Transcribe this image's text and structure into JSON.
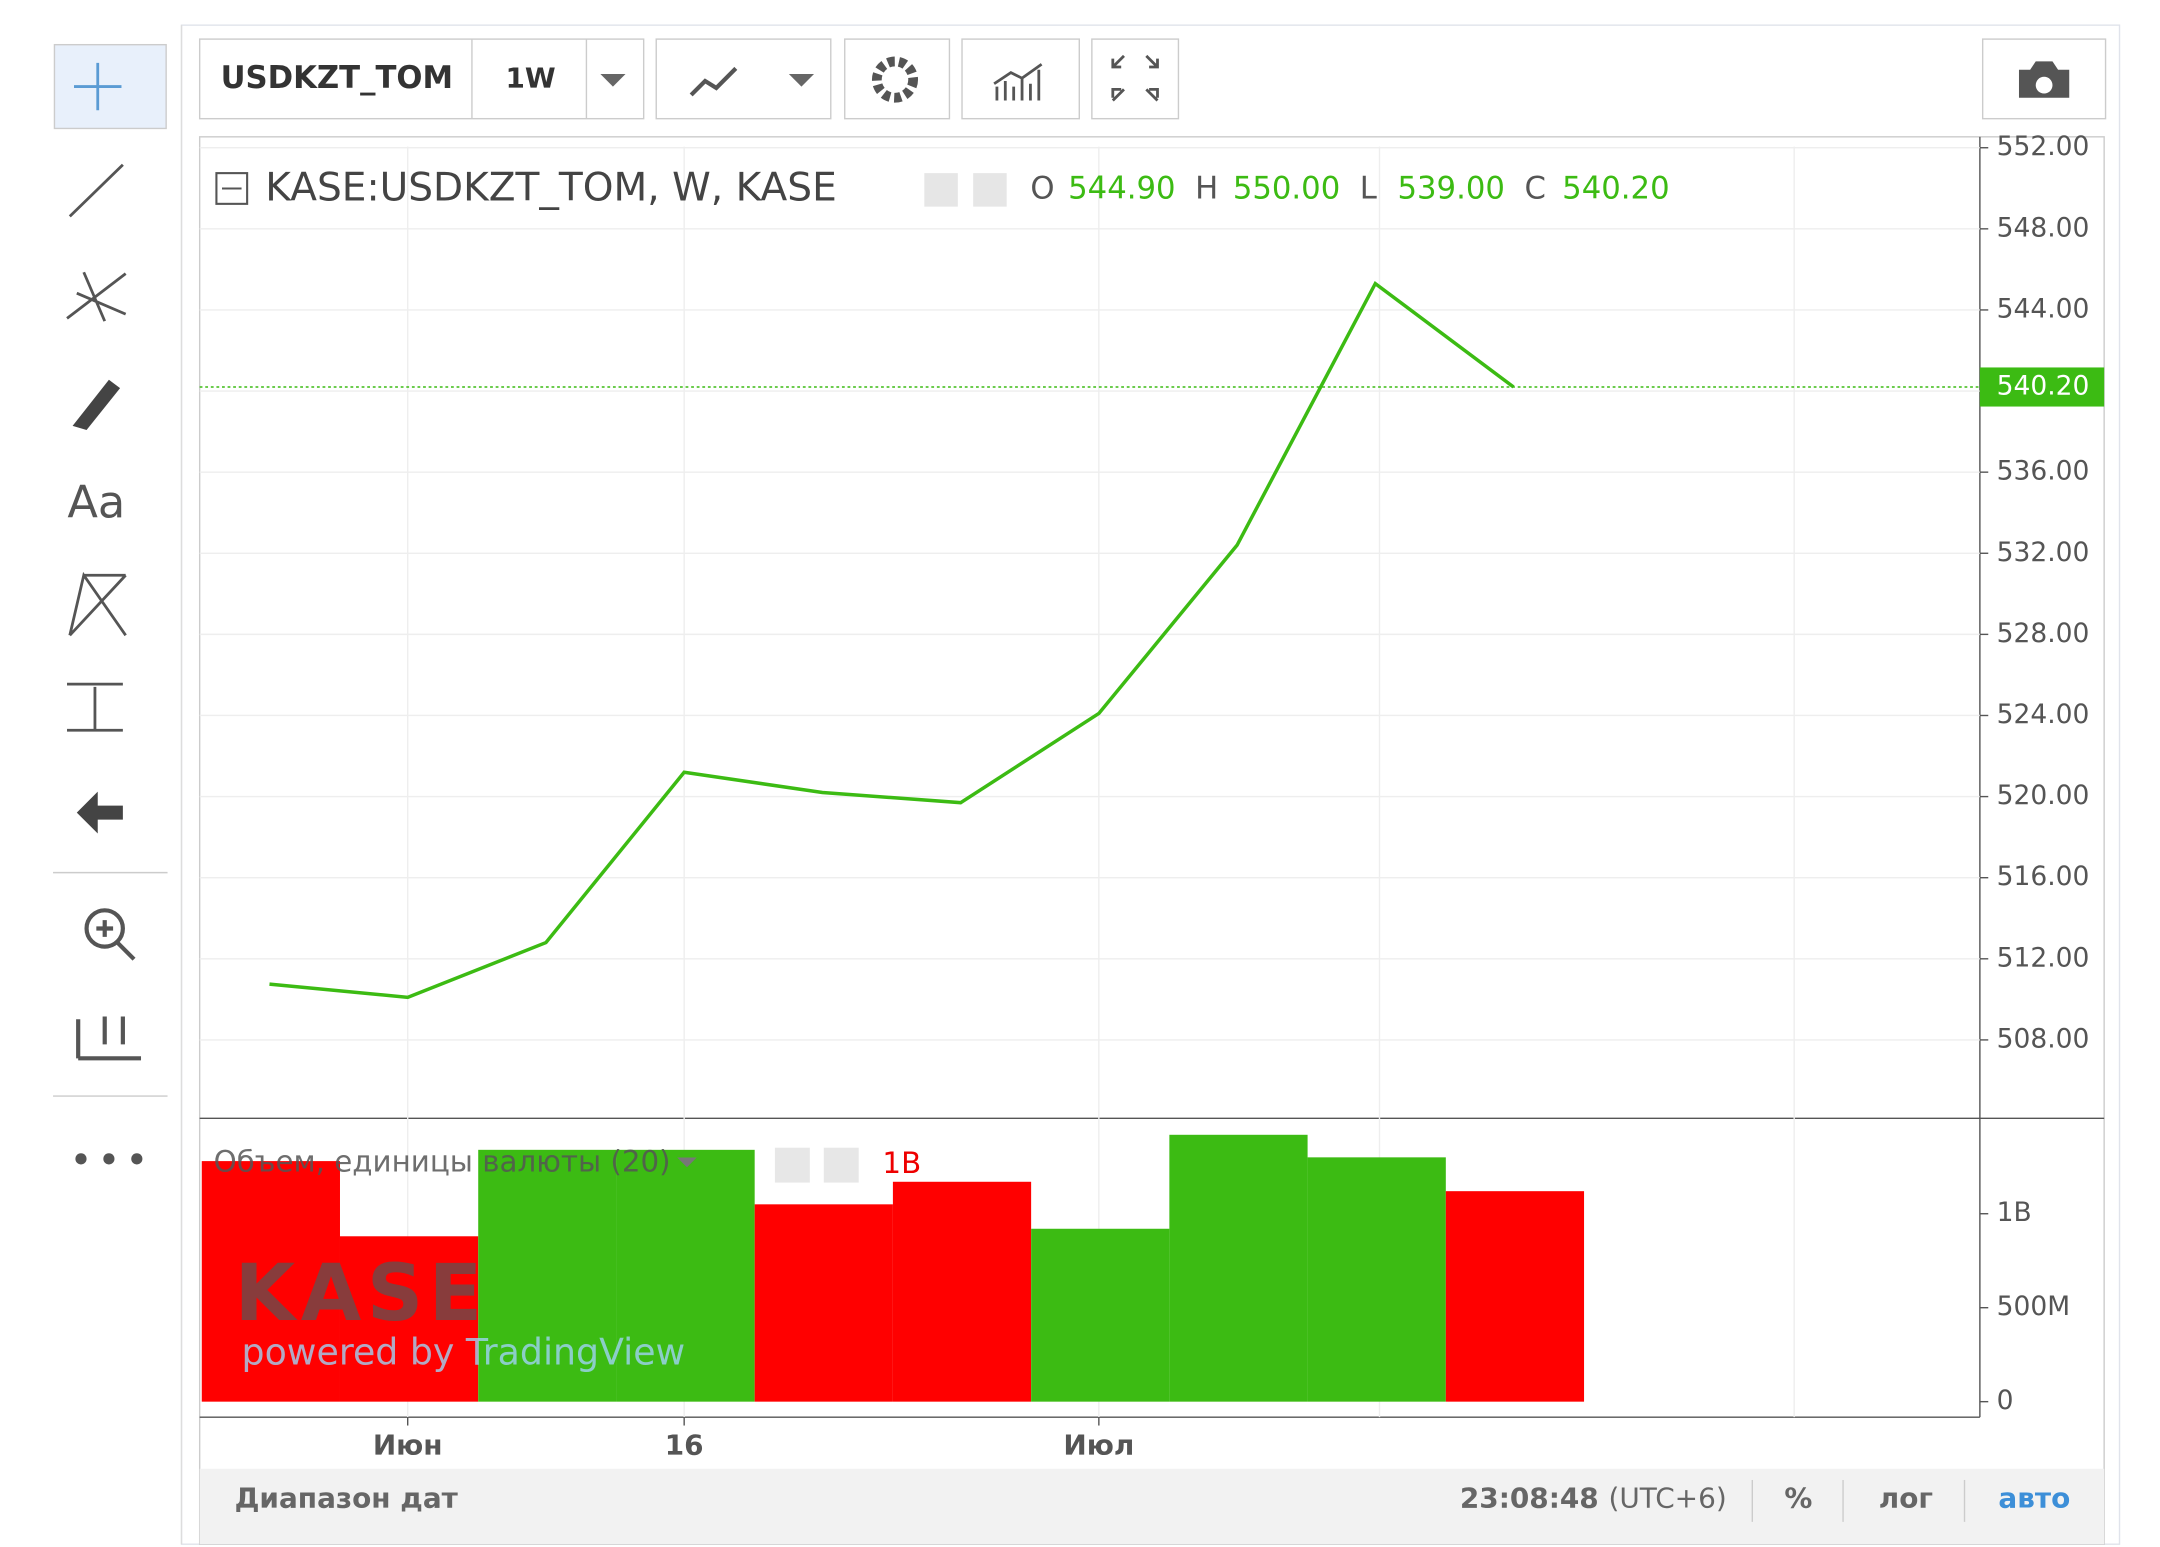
{
  "toolbar": {
    "symbol": "USDKZT_TOM",
    "interval": "1W"
  },
  "drawing_tools": {
    "text_tool": "Aa"
  },
  "chart_data": [
    {
      "type": "line",
      "title": "KASE:USDKZT_TOM, W, KASE",
      "ohlc": [
        {
          "name": "O",
          "value": "544.90"
        },
        {
          "name": "H",
          "value": "550.00"
        },
        {
          "name": "L",
          "value": "539.00"
        },
        {
          "name": "C",
          "value": "540.20"
        }
      ],
      "categories": [
        null,
        "Июн",
        null,
        "16",
        null,
        null,
        "Июл",
        null,
        null,
        null
      ],
      "values": [
        510.75,
        510.1,
        512.8,
        521.2,
        520.2,
        519.7,
        524.1,
        532.4,
        545.3,
        540.2
      ],
      "color": "#3cbb13",
      "last_price": {
        "value": 540.2,
        "label": "540.20"
      },
      "ylim": [
        504.2,
        552.4
      ],
      "yticks": [
        {
          "value": 508,
          "label": "508.00"
        },
        {
          "value": 512,
          "label": "512.00"
        },
        {
          "value": 516,
          "label": "516.00"
        },
        {
          "value": 520,
          "label": "520.00"
        },
        {
          "value": 524,
          "label": "524.00"
        },
        {
          "value": 528,
          "label": "528.00"
        },
        {
          "value": 532,
          "label": "532.00"
        },
        {
          "value": 536,
          "label": "536.00"
        },
        {
          "value": 540,
          "label": "540.00"
        },
        {
          "value": 544,
          "label": "544.00"
        },
        {
          "value": 548,
          "label": "548.00"
        },
        {
          "value": 552,
          "label": "552.00"
        }
      ],
      "grid": true
    },
    {
      "type": "bar",
      "title": "Объем, единицы валюты (20)",
      "last_label": "1B",
      "values": [
        1280000000,
        880000000,
        1340000000,
        1340000000,
        1050000000,
        1170000000,
        920000000,
        1420000000,
        1300000000,
        1120000000
      ],
      "colors": [
        "#ff0000",
        "#ff0000",
        "#3cbb13",
        "#3cbb13",
        "#ff0000",
        "#ff0000",
        "#3cbb13",
        "#3cbb13",
        "#3cbb13",
        "#ff0000"
      ],
      "ylim": [
        -75000000,
        1500000000
      ],
      "yticks": [
        0,
        {
          "value": 500000000,
          "label": "500M"
        },
        {
          "value": 1000000000,
          "label": "1B"
        }
      ]
    }
  ],
  "watermark": {
    "logo": "KASE",
    "caption": "powered by TradingView"
  },
  "footer": {
    "range": "Диапазон дат",
    "time": "23:08:48",
    "timezone": "(UTC+6)",
    "percent": "%",
    "log": "лог",
    "auto": "авто"
  }
}
